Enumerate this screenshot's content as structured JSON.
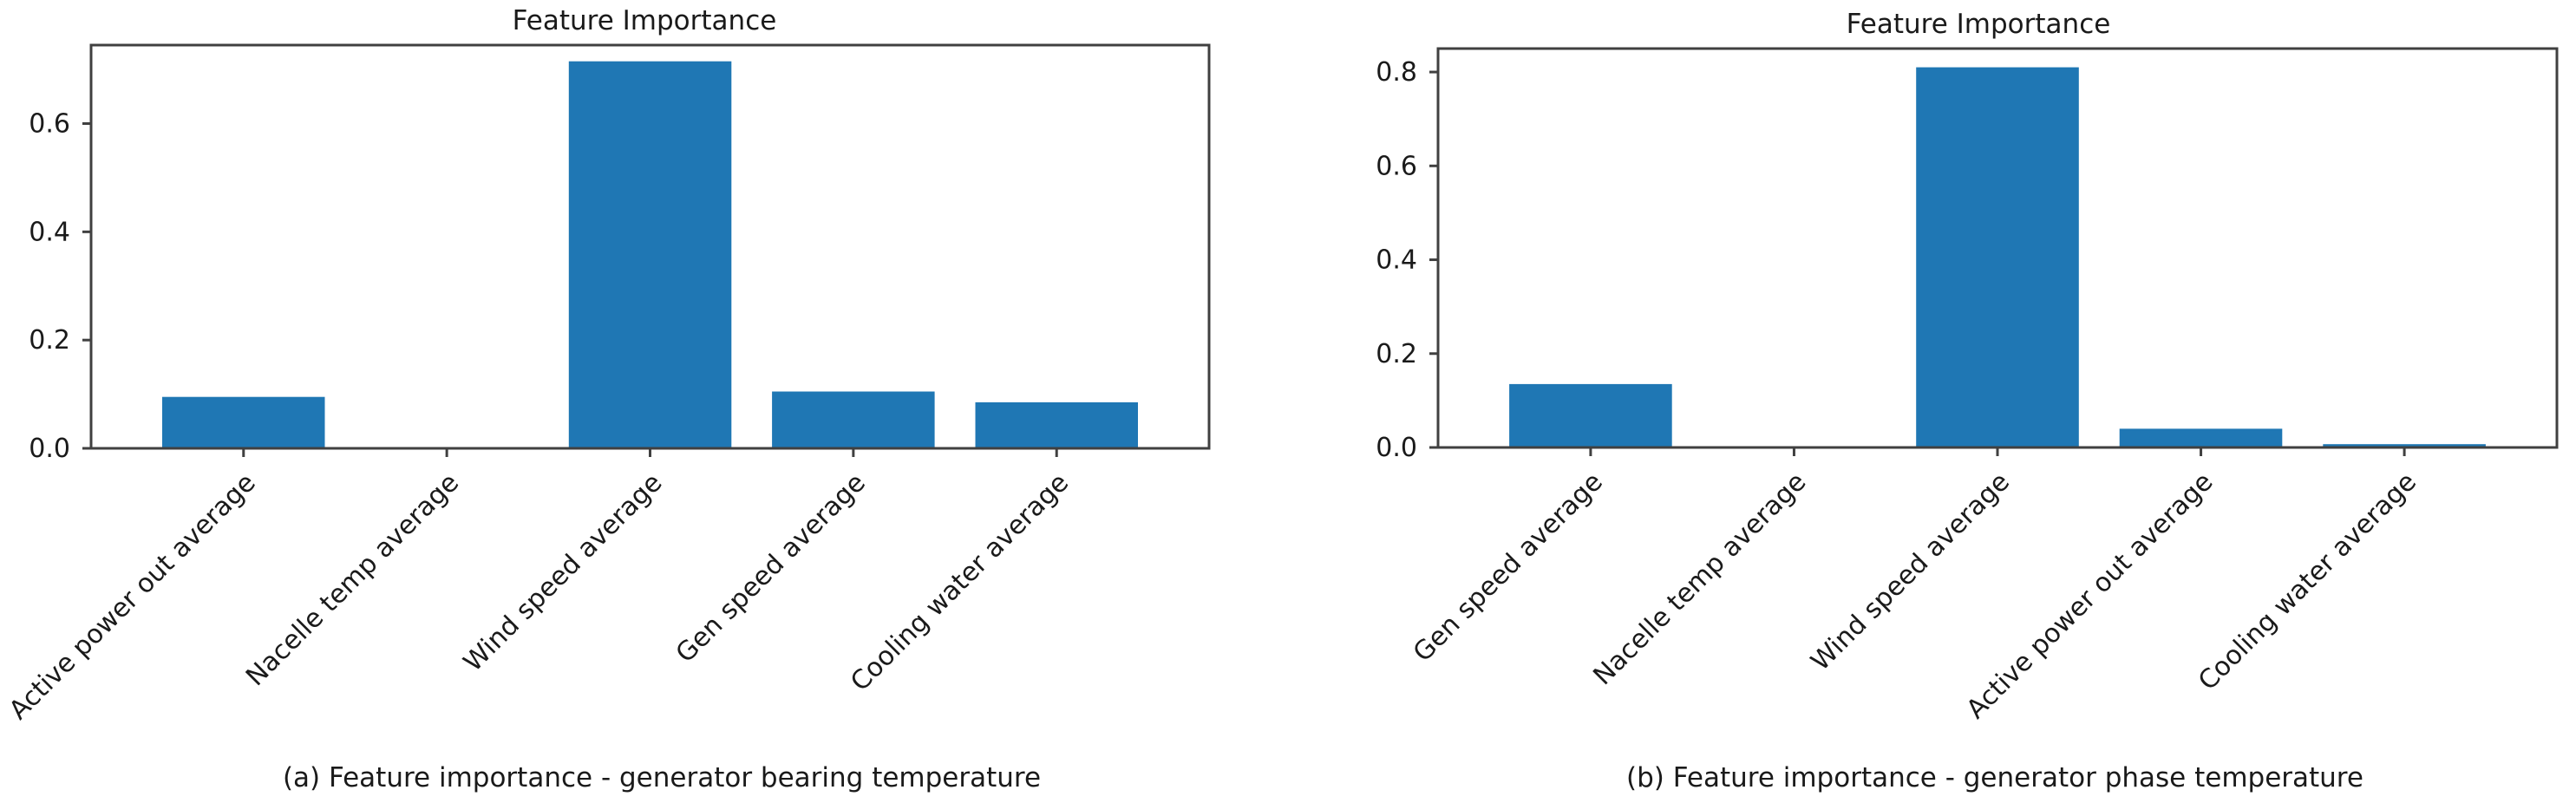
{
  "chart_data": [
    {
      "type": "bar",
      "title": "Feature Importance",
      "caption": "(a) Feature importance - generator bearing temperature",
      "categories": [
        "Active power out average",
        "Nacelle temp average",
        "Wind speed average",
        "Gen speed average",
        "Cooling water average"
      ],
      "values": [
        0.095,
        0.0,
        0.715,
        0.105,
        0.085
      ],
      "ylim": [
        0,
        0.745
      ],
      "yticks": [
        0.0,
        0.2,
        0.4,
        0.6
      ],
      "ytick_labels": [
        "0.0",
        "0.2",
        "0.4",
        "0.6"
      ],
      "bar_color": "#1f77b4",
      "grid": false
    },
    {
      "type": "bar",
      "title": "Feature Importance",
      "caption": "(b) Feature importance - generator phase temperature",
      "categories": [
        "Gen speed average",
        "Nacelle temp average",
        "Wind speed average",
        "Active power out average",
        "Cooling water average"
      ],
      "values": [
        0.135,
        0.0,
        0.81,
        0.04,
        0.007
      ],
      "ylim": [
        0,
        0.85
      ],
      "yticks": [
        0.0,
        0.2,
        0.4,
        0.6,
        0.8
      ],
      "ytick_labels": [
        "0.0",
        "0.2",
        "0.4",
        "0.6",
        "0.8"
      ],
      "bar_color": "#1f77b4",
      "grid": false
    }
  ]
}
